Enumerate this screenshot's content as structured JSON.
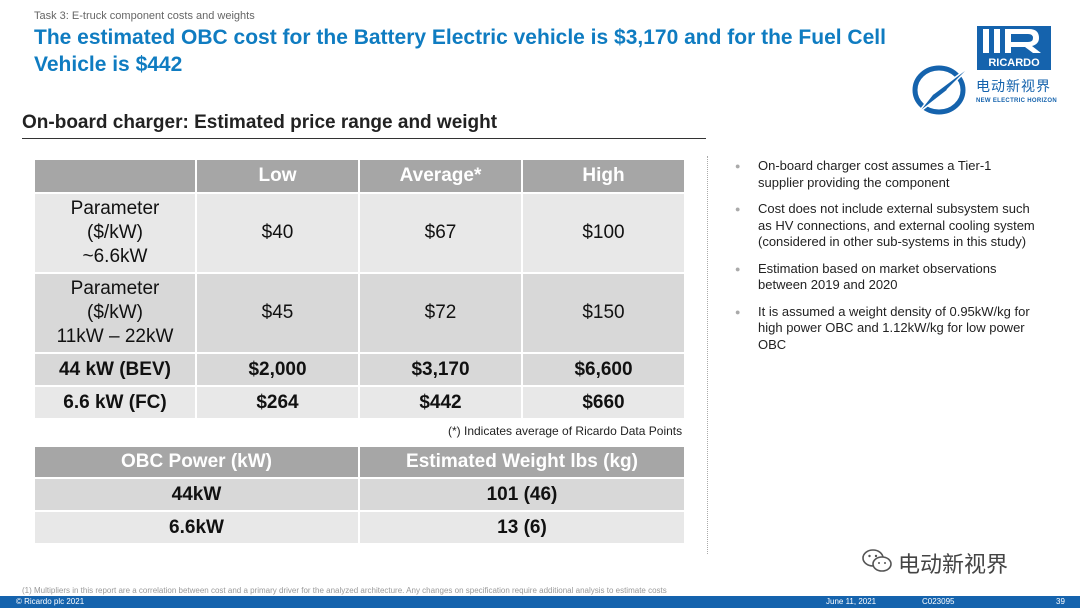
{
  "header": {
    "task_label": "Task 3: E-truck component costs and weights",
    "title": "The estimated OBC cost for the Battery Electric vehicle is $3,170 and for the Fuel Cell Vehicle is $442"
  },
  "logo": {
    "brand": "RICARDO",
    "cn_text": "电动新视界",
    "en_text": "NEW ELECTRIC HORIZON",
    "brand_color": "#1563ad"
  },
  "section_title": "On-board charger: Estimated price range and weight",
  "price_table": {
    "headers": [
      "",
      "Low",
      "Average*",
      "High"
    ],
    "rows": [
      {
        "label": [
          "Parameter",
          "($/kW)",
          "~6.6kW"
        ],
        "values": [
          "$40",
          "$67",
          "$100"
        ]
      },
      {
        "label": [
          "Parameter",
          "($/kW)",
          "11kW – 22kW"
        ],
        "values": [
          "$45",
          "$72",
          "$150"
        ]
      },
      {
        "label": [
          "44 kW (BEV)"
        ],
        "values": [
          "$2,000",
          "$3,170",
          "$6,600"
        ]
      },
      {
        "label": [
          "6.6 kW (FC)"
        ],
        "values": [
          "$264",
          "$442",
          "$660"
        ]
      }
    ],
    "note": "(*) Indicates average of Ricardo Data Points"
  },
  "weight_table": {
    "headers": [
      "OBC Power (kW)",
      "Estimated Weight lbs (kg)"
    ],
    "rows": [
      [
        "44kW",
        "101 (46)"
      ],
      [
        "6.6kW",
        "13 (6)"
      ]
    ]
  },
  "bullets": [
    "On-board charger cost assumes a Tier-1 supplier providing the component",
    "Cost does not include external subsystem such as HV connections, and external cooling system (considered in other sub-systems in this study)",
    "Estimation based on market observations between 2019 and 2020",
    "It is assumed a weight density of 0.95kW/kg for high power OBC and 1.12kW/kg for low power OBC"
  ],
  "watermark": "电动新视界",
  "footnote": "(1)  Multipliers in this report are a correlation between cost and a primary driver for the analyzed architecture. Any changes on specification require additional analysis to estimate costs",
  "footer": {
    "copyright": "© Ricardo plc 2021",
    "date": "June 11,  2021",
    "code": "C023095",
    "page": "39"
  }
}
